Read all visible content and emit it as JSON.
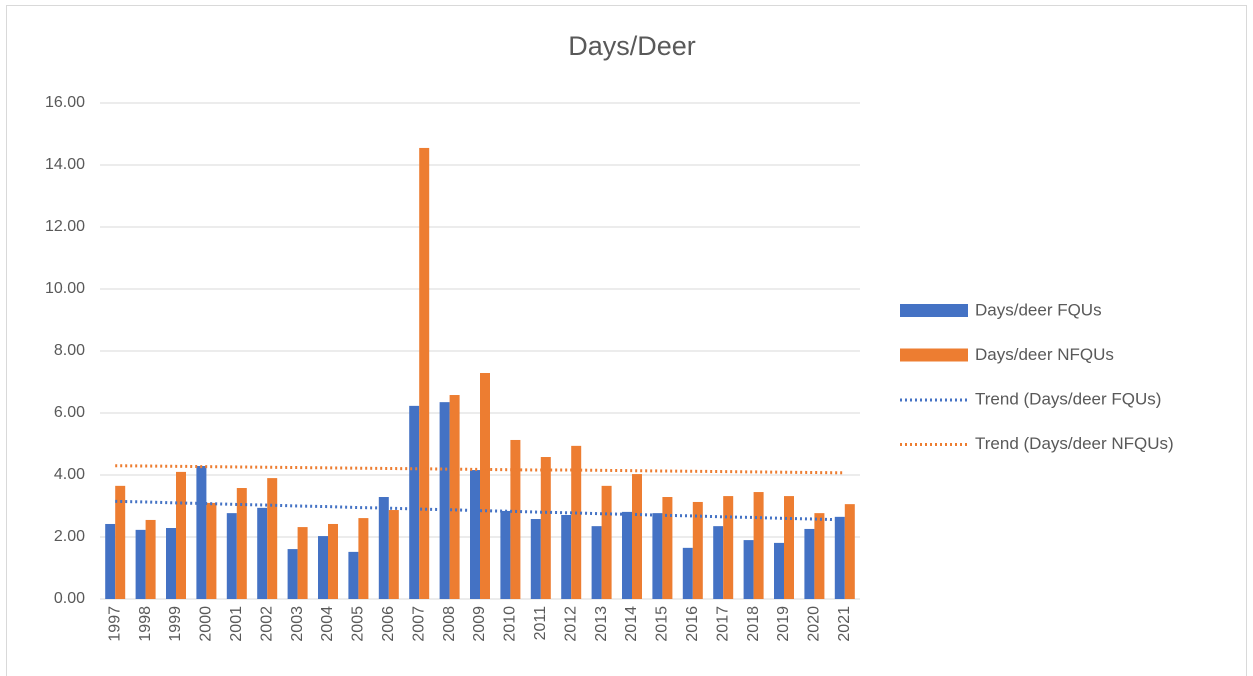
{
  "chart_data": {
    "type": "bar",
    "title": "Days/Deer",
    "categories": [
      "1997",
      "1998",
      "1999",
      "2000",
      "2001",
      "2002",
      "2003",
      "2004",
      "2005",
      "2006",
      "2007",
      "2008",
      "2009",
      "2010",
      "2011",
      "2012",
      "2013",
      "2014",
      "2015",
      "2016",
      "2017",
      "2018",
      "2019",
      "2020",
      "2021"
    ],
    "series": [
      {
        "name": "Days/deer FQUs",
        "color": "#4472c4",
        "type": "bar",
        "values": [
          2.42,
          2.23,
          2.29,
          4.29,
          2.77,
          2.94,
          1.61,
          2.03,
          1.52,
          3.29,
          6.23,
          6.35,
          4.16,
          2.84,
          2.58,
          2.71,
          2.35,
          2.81,
          2.77,
          1.65,
          2.35,
          1.9,
          1.81,
          2.26,
          2.65
        ]
      },
      {
        "name": "Days/deer NFQUs",
        "color": "#ed7d31",
        "type": "bar",
        "values": [
          3.65,
          2.55,
          4.1,
          3.1,
          3.58,
          3.9,
          2.32,
          2.42,
          2.61,
          2.87,
          14.55,
          6.58,
          7.29,
          5.13,
          4.58,
          4.94,
          3.65,
          4.03,
          3.29,
          3.13,
          3.32,
          3.45,
          3.32,
          2.77,
          3.06
        ]
      },
      {
        "name": "Trend (Days/deer FQUs)",
        "color": "#4472c4",
        "type": "line",
        "linestyle": "dotted",
        "values": [
          3.15,
          3.13,
          3.1,
          3.08,
          3.05,
          3.03,
          3.0,
          2.98,
          2.95,
          2.93,
          2.9,
          2.88,
          2.85,
          2.83,
          2.8,
          2.78,
          2.75,
          2.73,
          2.7,
          2.68,
          2.65,
          2.63,
          2.6,
          2.58,
          2.55
        ]
      },
      {
        "name": "Trend (Days/deer NFQUs)",
        "color": "#ed7d31",
        "type": "line",
        "linestyle": "dotted",
        "values": [
          4.3,
          4.29,
          4.28,
          4.27,
          4.26,
          4.25,
          4.24,
          4.23,
          4.22,
          4.21,
          4.2,
          4.19,
          4.18,
          4.17,
          4.16,
          4.16,
          4.15,
          4.14,
          4.13,
          4.12,
          4.11,
          4.1,
          4.09,
          4.08,
          4.07
        ]
      }
    ],
    "ylim": [
      0,
      16
    ],
    "yticks": [
      {
        "value": 0,
        "label": "0.00"
      },
      {
        "value": 2,
        "label": "2.00"
      },
      {
        "value": 4,
        "label": "4.00"
      },
      {
        "value": 6,
        "label": "6.00"
      },
      {
        "value": 8,
        "label": "8.00"
      },
      {
        "value": 10,
        "label": "10.00"
      },
      {
        "value": 12,
        "label": "12.00"
      },
      {
        "value": 14,
        "label": "14.00"
      },
      {
        "value": 16,
        "label": "16.00"
      }
    ],
    "grid": true,
    "legend": "right"
  }
}
